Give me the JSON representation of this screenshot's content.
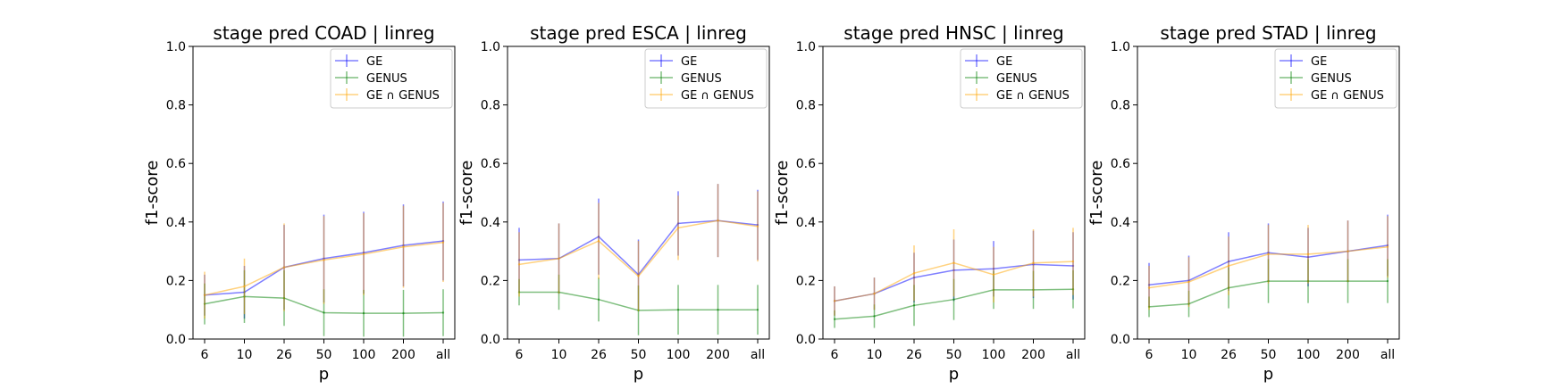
{
  "chart_data": [
    {
      "type": "line",
      "title": "stage pred COAD | linreg",
      "xlabel": "p",
      "ylabel": "f1-score",
      "ylim": [
        0,
        1
      ],
      "yticks": [
        "0.0",
        "0.2",
        "0.4",
        "0.6",
        "0.8",
        "1.0"
      ],
      "categories": [
        "6",
        "10",
        "26",
        "50",
        "100",
        "200",
        "all"
      ],
      "legend_position": "top-right",
      "series": [
        {
          "name": "GE",
          "color": "#0000ff",
          "values": [
            0.15,
            0.16,
            0.245,
            0.275,
            0.295,
            0.32,
            0.335
          ],
          "err": [
            0.07,
            0.09,
            0.145,
            0.15,
            0.14,
            0.14,
            0.135
          ]
        },
        {
          "name": "GENUS",
          "color": "#008000",
          "values": [
            0.12,
            0.145,
            0.14,
            0.09,
            0.088,
            0.088,
            0.09
          ],
          "err": [
            0.07,
            0.09,
            0.095,
            0.08,
            0.08,
            0.08,
            0.08
          ]
        },
        {
          "name": "GE ∩ GENUS",
          "color": "#ffa500",
          "values": [
            0.15,
            0.18,
            0.245,
            0.27,
            0.29,
            0.315,
            0.33
          ],
          "err": [
            0.08,
            0.095,
            0.15,
            0.15,
            0.14,
            0.14,
            0.135
          ]
        }
      ]
    },
    {
      "type": "line",
      "title": "stage pred ESCA | linreg",
      "xlabel": "p",
      "ylabel": "f1-score",
      "ylim": [
        0,
        1
      ],
      "yticks": [
        "0.0",
        "0.2",
        "0.4",
        "0.6",
        "0.8",
        "1.0"
      ],
      "categories": [
        "6",
        "10",
        "26",
        "50",
        "100",
        "200",
        "all"
      ],
      "legend_position": "top-right",
      "series": [
        {
          "name": "GE",
          "color": "#0000ff",
          "values": [
            0.27,
            0.275,
            0.35,
            0.22,
            0.395,
            0.405,
            0.39
          ],
          "err": [
            0.11,
            0.12,
            0.13,
            0.12,
            0.11,
            0.125,
            0.12
          ]
        },
        {
          "name": "GENUS",
          "color": "#008000",
          "values": [
            0.16,
            0.16,
            0.135,
            0.098,
            0.1,
            0.1,
            0.1
          ],
          "err": [
            0.045,
            0.06,
            0.075,
            0.085,
            0.085,
            0.085,
            0.085
          ]
        },
        {
          "name": "GE ∩ GENUS",
          "color": "#ffa500",
          "values": [
            0.255,
            0.275,
            0.335,
            0.215,
            0.38,
            0.405,
            0.385
          ],
          "err": [
            0.11,
            0.12,
            0.13,
            0.12,
            0.11,
            0.125,
            0.12
          ]
        }
      ]
    },
    {
      "type": "line",
      "title": "stage pred HNSC | linreg",
      "xlabel": "p",
      "ylabel": "f1-score",
      "ylim": [
        0,
        1
      ],
      "yticks": [
        "0.0",
        "0.2",
        "0.4",
        "0.6",
        "0.8",
        "1.0"
      ],
      "categories": [
        "6",
        "10",
        "26",
        "50",
        "100",
        "200",
        "all"
      ],
      "legend_position": "top-right",
      "series": [
        {
          "name": "GE",
          "color": "#0000ff",
          "values": [
            0.13,
            0.155,
            0.21,
            0.235,
            0.24,
            0.255,
            0.25
          ],
          "err": [
            0.05,
            0.055,
            0.085,
            0.105,
            0.095,
            0.115,
            0.115
          ]
        },
        {
          "name": "GENUS",
          "color": "#008000",
          "values": [
            0.068,
            0.078,
            0.115,
            0.135,
            0.168,
            0.168,
            0.17
          ],
          "err": [
            0.03,
            0.04,
            0.07,
            0.07,
            0.065,
            0.065,
            0.065
          ]
        },
        {
          "name": "GE ∩ GENUS",
          "color": "#ffa500",
          "values": [
            0.13,
            0.155,
            0.225,
            0.26,
            0.22,
            0.26,
            0.265
          ],
          "err": [
            0.05,
            0.055,
            0.095,
            0.115,
            0.095,
            0.115,
            0.115
          ]
        }
      ]
    },
    {
      "type": "line",
      "title": "stage pred STAD | linreg",
      "xlabel": "p",
      "ylabel": "f1-score",
      "ylim": [
        0,
        1
      ],
      "yticks": [
        "0.0",
        "0.2",
        "0.4",
        "0.6",
        "0.8",
        "1.0"
      ],
      "categories": [
        "6",
        "10",
        "26",
        "50",
        "100",
        "200",
        "all"
      ],
      "legend_position": "top-right",
      "series": [
        {
          "name": "GE",
          "color": "#0000ff",
          "values": [
            0.185,
            0.2,
            0.265,
            0.295,
            0.28,
            0.3,
            0.32
          ],
          "err": [
            0.075,
            0.085,
            0.1,
            0.1,
            0.1,
            0.105,
            0.105
          ]
        },
        {
          "name": "GENUS",
          "color": "#008000",
          "values": [
            0.11,
            0.12,
            0.175,
            0.198,
            0.198,
            0.198,
            0.198
          ],
          "err": [
            0.035,
            0.045,
            0.07,
            0.075,
            0.075,
            0.075,
            0.075
          ]
        },
        {
          "name": "GE ∩ GENUS",
          "color": "#ffa500",
          "values": [
            0.175,
            0.195,
            0.25,
            0.29,
            0.29,
            0.3,
            0.315
          ],
          "err": [
            0.075,
            0.085,
            0.1,
            0.1,
            0.1,
            0.105,
            0.105
          ]
        }
      ]
    }
  ]
}
